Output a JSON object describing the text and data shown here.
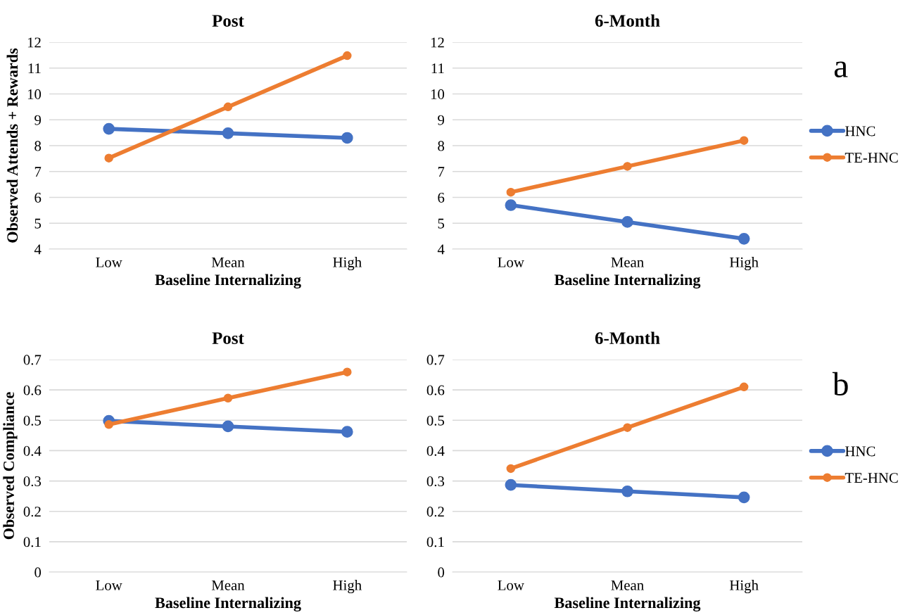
{
  "chart_data": [
    {
      "type": "line",
      "title": "Post",
      "xlabel": "Baseline Internalizing",
      "ylabel": "Observed Attends + Rewards",
      "categories": [
        "Low",
        "Mean",
        "High"
      ],
      "ylim": [
        4,
        12
      ],
      "yticks": [
        4,
        5,
        6,
        7,
        8,
        9,
        10,
        11,
        12
      ],
      "grid": "y",
      "marker": "circle",
      "line_style": "solid",
      "series": [
        {
          "color": "#4472c4",
          "values": [
            8.65,
            8.48,
            8.3
          ]
        },
        {
          "color": "#ed7d31",
          "values": [
            7.52,
            9.5,
            11.48
          ]
        }
      ]
    },
    {
      "type": "line",
      "title": "6-Month",
      "xlabel": "Baseline Internalizing",
      "categories": [
        "Low",
        "Mean",
        "High"
      ],
      "ylim": [
        4,
        12
      ],
      "yticks": [
        4,
        5,
        6,
        7,
        8,
        9,
        10,
        11,
        12
      ],
      "grid": "y",
      "marker": "circle",
      "line_style": "solid",
      "legend": "right",
      "annotations": [
        "a"
      ],
      "series": [
        {
          "name": "HNC",
          "color": "#4472c4",
          "values": [
            5.7,
            5.05,
            4.4
          ]
        },
        {
          "name": "TE-HNC",
          "color": "#ed7d31",
          "values": [
            6.2,
            7.2,
            8.2
          ]
        }
      ]
    },
    {
      "type": "line",
      "title": "Post",
      "xlabel": "Baseline Internalizing",
      "ylabel": "Observed Compliance",
      "categories": [
        "Low",
        "Mean",
        "High"
      ],
      "ylim": [
        0,
        0.7
      ],
      "yticks": [
        0,
        0.1,
        0.2,
        0.3,
        0.4,
        0.5,
        0.6,
        0.7
      ],
      "grid": "y",
      "marker": "circle",
      "line_style": "solid",
      "series": [
        {
          "color": "#4472c4",
          "values": [
            0.498,
            0.48,
            0.462
          ]
        },
        {
          "color": "#ed7d31",
          "values": [
            0.486,
            0.573,
            0.659
          ]
        }
      ]
    },
    {
      "type": "line",
      "title": "6-Month",
      "xlabel": "Baseline Internalizing",
      "categories": [
        "Low",
        "Mean",
        "High"
      ],
      "ylim": [
        0,
        0.7
      ],
      "yticks": [
        0,
        0.1,
        0.2,
        0.3,
        0.4,
        0.5,
        0.6,
        0.7
      ],
      "grid": "y",
      "marker": "circle",
      "line_style": "solid",
      "legend": "right",
      "annotations": [
        "b"
      ],
      "series": [
        {
          "name": "HNC",
          "color": "#4472c4",
          "values": [
            0.287,
            0.266,
            0.246
          ]
        },
        {
          "name": "TE-HNC",
          "color": "#ed7d31",
          "values": [
            0.341,
            0.476,
            0.61
          ]
        }
      ]
    }
  ]
}
